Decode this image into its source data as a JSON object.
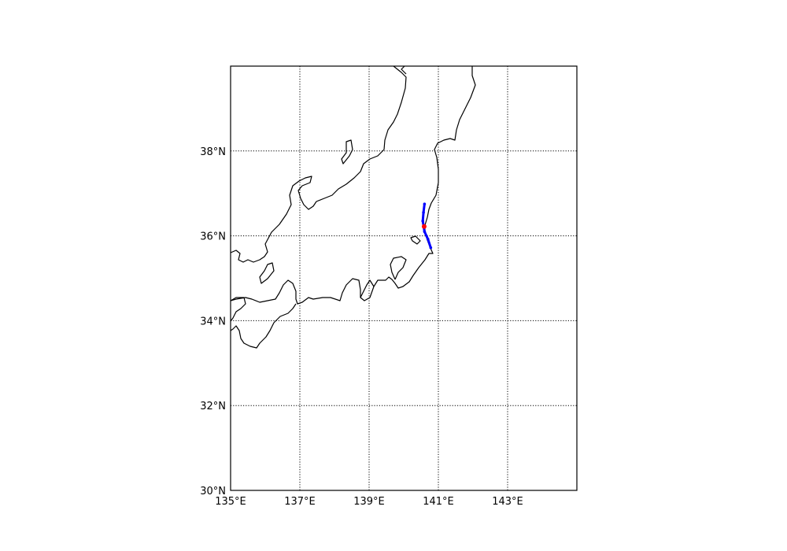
{
  "map": {
    "lon_range": [
      135,
      145
    ],
    "lat_range": [
      30,
      40
    ],
    "lon_ticks": [
      {
        "value": 135,
        "label": "135°E"
      },
      {
        "value": 137,
        "label": "137°E"
      },
      {
        "value": 139,
        "label": "139°E"
      },
      {
        "value": 141,
        "label": "141°E"
      },
      {
        "value": 143,
        "label": "143°E"
      }
    ],
    "lat_ticks": [
      {
        "value": 30,
        "label": "30°N"
      },
      {
        "value": 32,
        "label": "32°N"
      },
      {
        "value": 34,
        "label": "34°N"
      },
      {
        "value": 36,
        "label": "36°N"
      },
      {
        "value": 38,
        "label": "38°N"
      }
    ],
    "grid": true,
    "colors": {
      "coastline": "#000000",
      "track": "#0000ff",
      "marker": "#ff0000",
      "grid": "#000000"
    }
  },
  "chart_data": {
    "type": "scatter",
    "series": [
      {
        "kind": "line",
        "color": "#0000ff",
        "points": [
          {
            "lon": 140.6,
            "lat": 36.75
          },
          {
            "lon": 140.57,
            "lat": 36.55
          },
          {
            "lon": 140.55,
            "lat": 36.35
          },
          {
            "lon": 140.6,
            "lat": 36.1
          },
          {
            "lon": 140.7,
            "lat": 35.92
          },
          {
            "lon": 140.78,
            "lat": 35.72
          }
        ]
      },
      {
        "kind": "marker",
        "color": "#ff0000",
        "points": [
          {
            "lon": 140.59,
            "lat": 36.22
          }
        ]
      }
    ],
    "xlim": [
      135,
      145
    ],
    "ylim": [
      30,
      40
    ]
  }
}
